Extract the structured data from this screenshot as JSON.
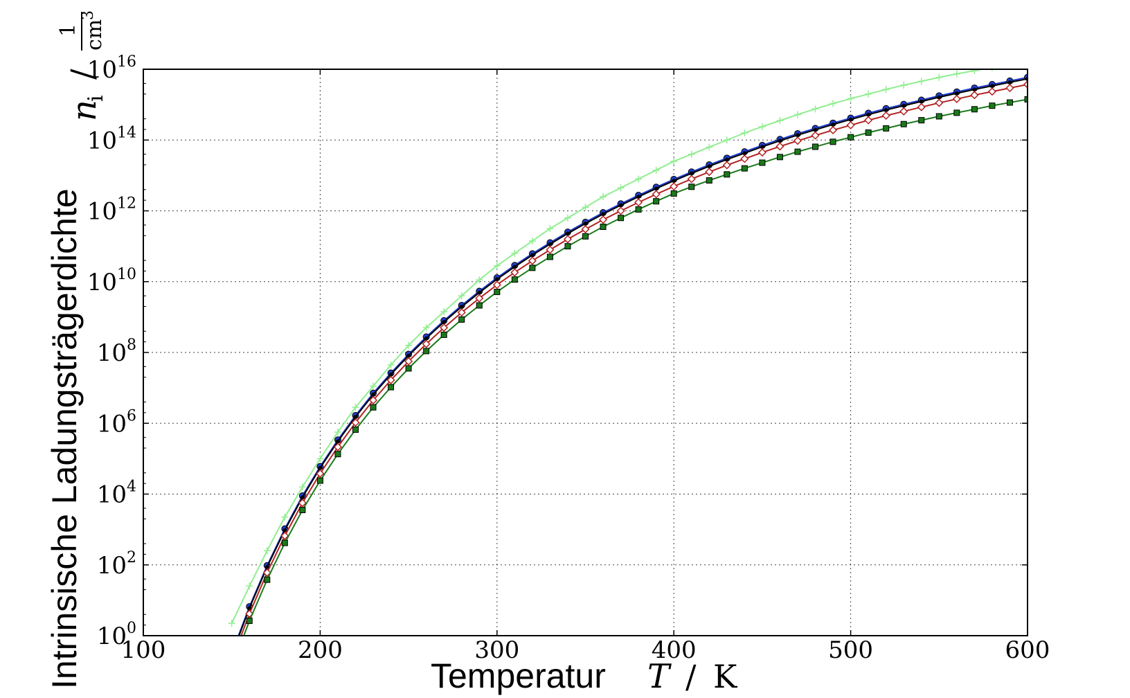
{
  "chart_data": {
    "type": "line",
    "xlabel_text": "Temperatur",
    "xlabel_symbol": "T",
    "xlabel_unit": "K",
    "ylabel_text": "Intrinsische Ladungsträgerdichte",
    "ylabel_symbol": "n",
    "ylabel_symbol_sub": "i",
    "ylabel_unit_num": "1",
    "ylabel_unit_den": "cm",
    "ylabel_unit_den_exp": "3",
    "xlim": [
      100,
      600
    ],
    "ylim_exp": [
      0,
      16
    ],
    "yscale": "log",
    "grid": true,
    "xticks": [
      "100",
      "200",
      "300",
      "400",
      "500",
      "600"
    ],
    "yticks": [
      {
        "base": "10",
        "exp": "0"
      },
      {
        "base": "10",
        "exp": "2"
      },
      {
        "base": "10",
        "exp": "4"
      },
      {
        "base": "10",
        "exp": "6"
      },
      {
        "base": "10",
        "exp": "8"
      },
      {
        "base": "10",
        "exp": "10"
      },
      {
        "base": "10",
        "exp": "12"
      },
      {
        "base": "10",
        "exp": "14"
      },
      {
        "base": "10",
        "exp": "16"
      }
    ],
    "x": [
      150,
      160,
      170,
      180,
      190,
      200,
      210,
      220,
      230,
      240,
      250,
      260,
      270,
      280,
      290,
      300,
      310,
      320,
      330,
      340,
      350,
      360,
      370,
      380,
      390,
      400,
      410,
      420,
      430,
      440,
      450,
      460,
      470,
      480,
      490,
      500,
      510,
      520,
      530,
      540,
      550,
      560,
      570,
      580,
      590,
      600
    ],
    "series": [
      {
        "color": "#90ee90",
        "marker": "plus",
        "log10_values": [
          0.35,
          1.4,
          2.4,
          3.35,
          4.2,
          5.0,
          5.75,
          6.45,
          7.05,
          7.65,
          8.2,
          8.7,
          9.15,
          9.6,
          10.05,
          10.45,
          10.8,
          11.15,
          11.5,
          11.8,
          12.1,
          12.4,
          12.65,
          12.9,
          13.15,
          13.4,
          13.6,
          13.8,
          14.0,
          14.2,
          14.38,
          14.55,
          14.72,
          14.88,
          15.03,
          15.17,
          15.3,
          15.43,
          15.55,
          15.66,
          15.77,
          15.87,
          15.96,
          16.05,
          16.1,
          16.17
        ]
      },
      {
        "color": "#1f3fd0",
        "marker": "circle",
        "log10_values": [
          -0.5,
          0.82,
          1.98,
          3.02,
          3.95,
          4.78,
          5.53,
          6.22,
          6.85,
          7.42,
          7.95,
          8.44,
          8.9,
          9.33,
          9.73,
          10.11,
          10.46,
          10.79,
          11.1,
          11.4,
          11.68,
          11.95,
          12.2,
          12.44,
          12.67,
          12.89,
          13.1,
          13.3,
          13.49,
          13.67,
          13.85,
          14.02,
          14.18,
          14.33,
          14.48,
          14.62,
          14.76,
          14.89,
          15.01,
          15.13,
          15.25,
          15.36,
          15.47,
          15.57,
          15.67,
          15.77
        ]
      },
      {
        "color": "#000000",
        "marker": "circle-small",
        "log10_values": [
          -0.55,
          0.78,
          1.94,
          2.98,
          3.91,
          4.74,
          5.49,
          6.18,
          6.81,
          7.38,
          7.91,
          8.4,
          8.86,
          9.29,
          9.69,
          10.07,
          10.42,
          10.75,
          11.06,
          11.36,
          11.64,
          11.91,
          12.16,
          12.4,
          12.63,
          12.85,
          13.06,
          13.26,
          13.45,
          13.63,
          13.81,
          13.98,
          14.14,
          14.29,
          14.44,
          14.58,
          14.72,
          14.85,
          14.97,
          15.09,
          15.21,
          15.32,
          15.43,
          15.53,
          15.63,
          15.73
        ]
      },
      {
        "color": "#b22222",
        "marker": "diamond-open",
        "log10_values": [
          -0.7,
          0.62,
          1.78,
          2.82,
          3.75,
          4.58,
          5.33,
          6.02,
          6.65,
          7.22,
          7.75,
          8.24,
          8.7,
          9.13,
          9.53,
          9.91,
          10.26,
          10.59,
          10.9,
          11.2,
          11.48,
          11.75,
          12.0,
          12.24,
          12.47,
          12.69,
          12.9,
          13.1,
          13.29,
          13.47,
          13.65,
          13.82,
          13.98,
          14.13,
          14.28,
          14.42,
          14.56,
          14.69,
          14.81,
          14.93,
          15.05,
          15.16,
          15.27,
          15.37,
          15.47,
          15.57
        ]
      },
      {
        "color": "#1a7a1a",
        "marker": "square",
        "log10_values": [
          -0.9,
          0.42,
          1.58,
          2.62,
          3.55,
          4.38,
          5.13,
          5.82,
          6.45,
          7.02,
          7.55,
          8.04,
          8.5,
          8.93,
          9.33,
          9.71,
          10.06,
          10.39,
          10.7,
          11.0,
          11.28,
          11.55,
          11.8,
          12.04,
          12.27,
          12.49,
          12.68,
          12.86,
          13.03,
          13.2,
          13.36,
          13.52,
          13.67,
          13.81,
          13.95,
          14.08,
          14.21,
          14.33,
          14.45,
          14.56,
          14.67,
          14.77,
          14.87,
          14.97,
          15.06,
          15.15
        ]
      }
    ]
  }
}
